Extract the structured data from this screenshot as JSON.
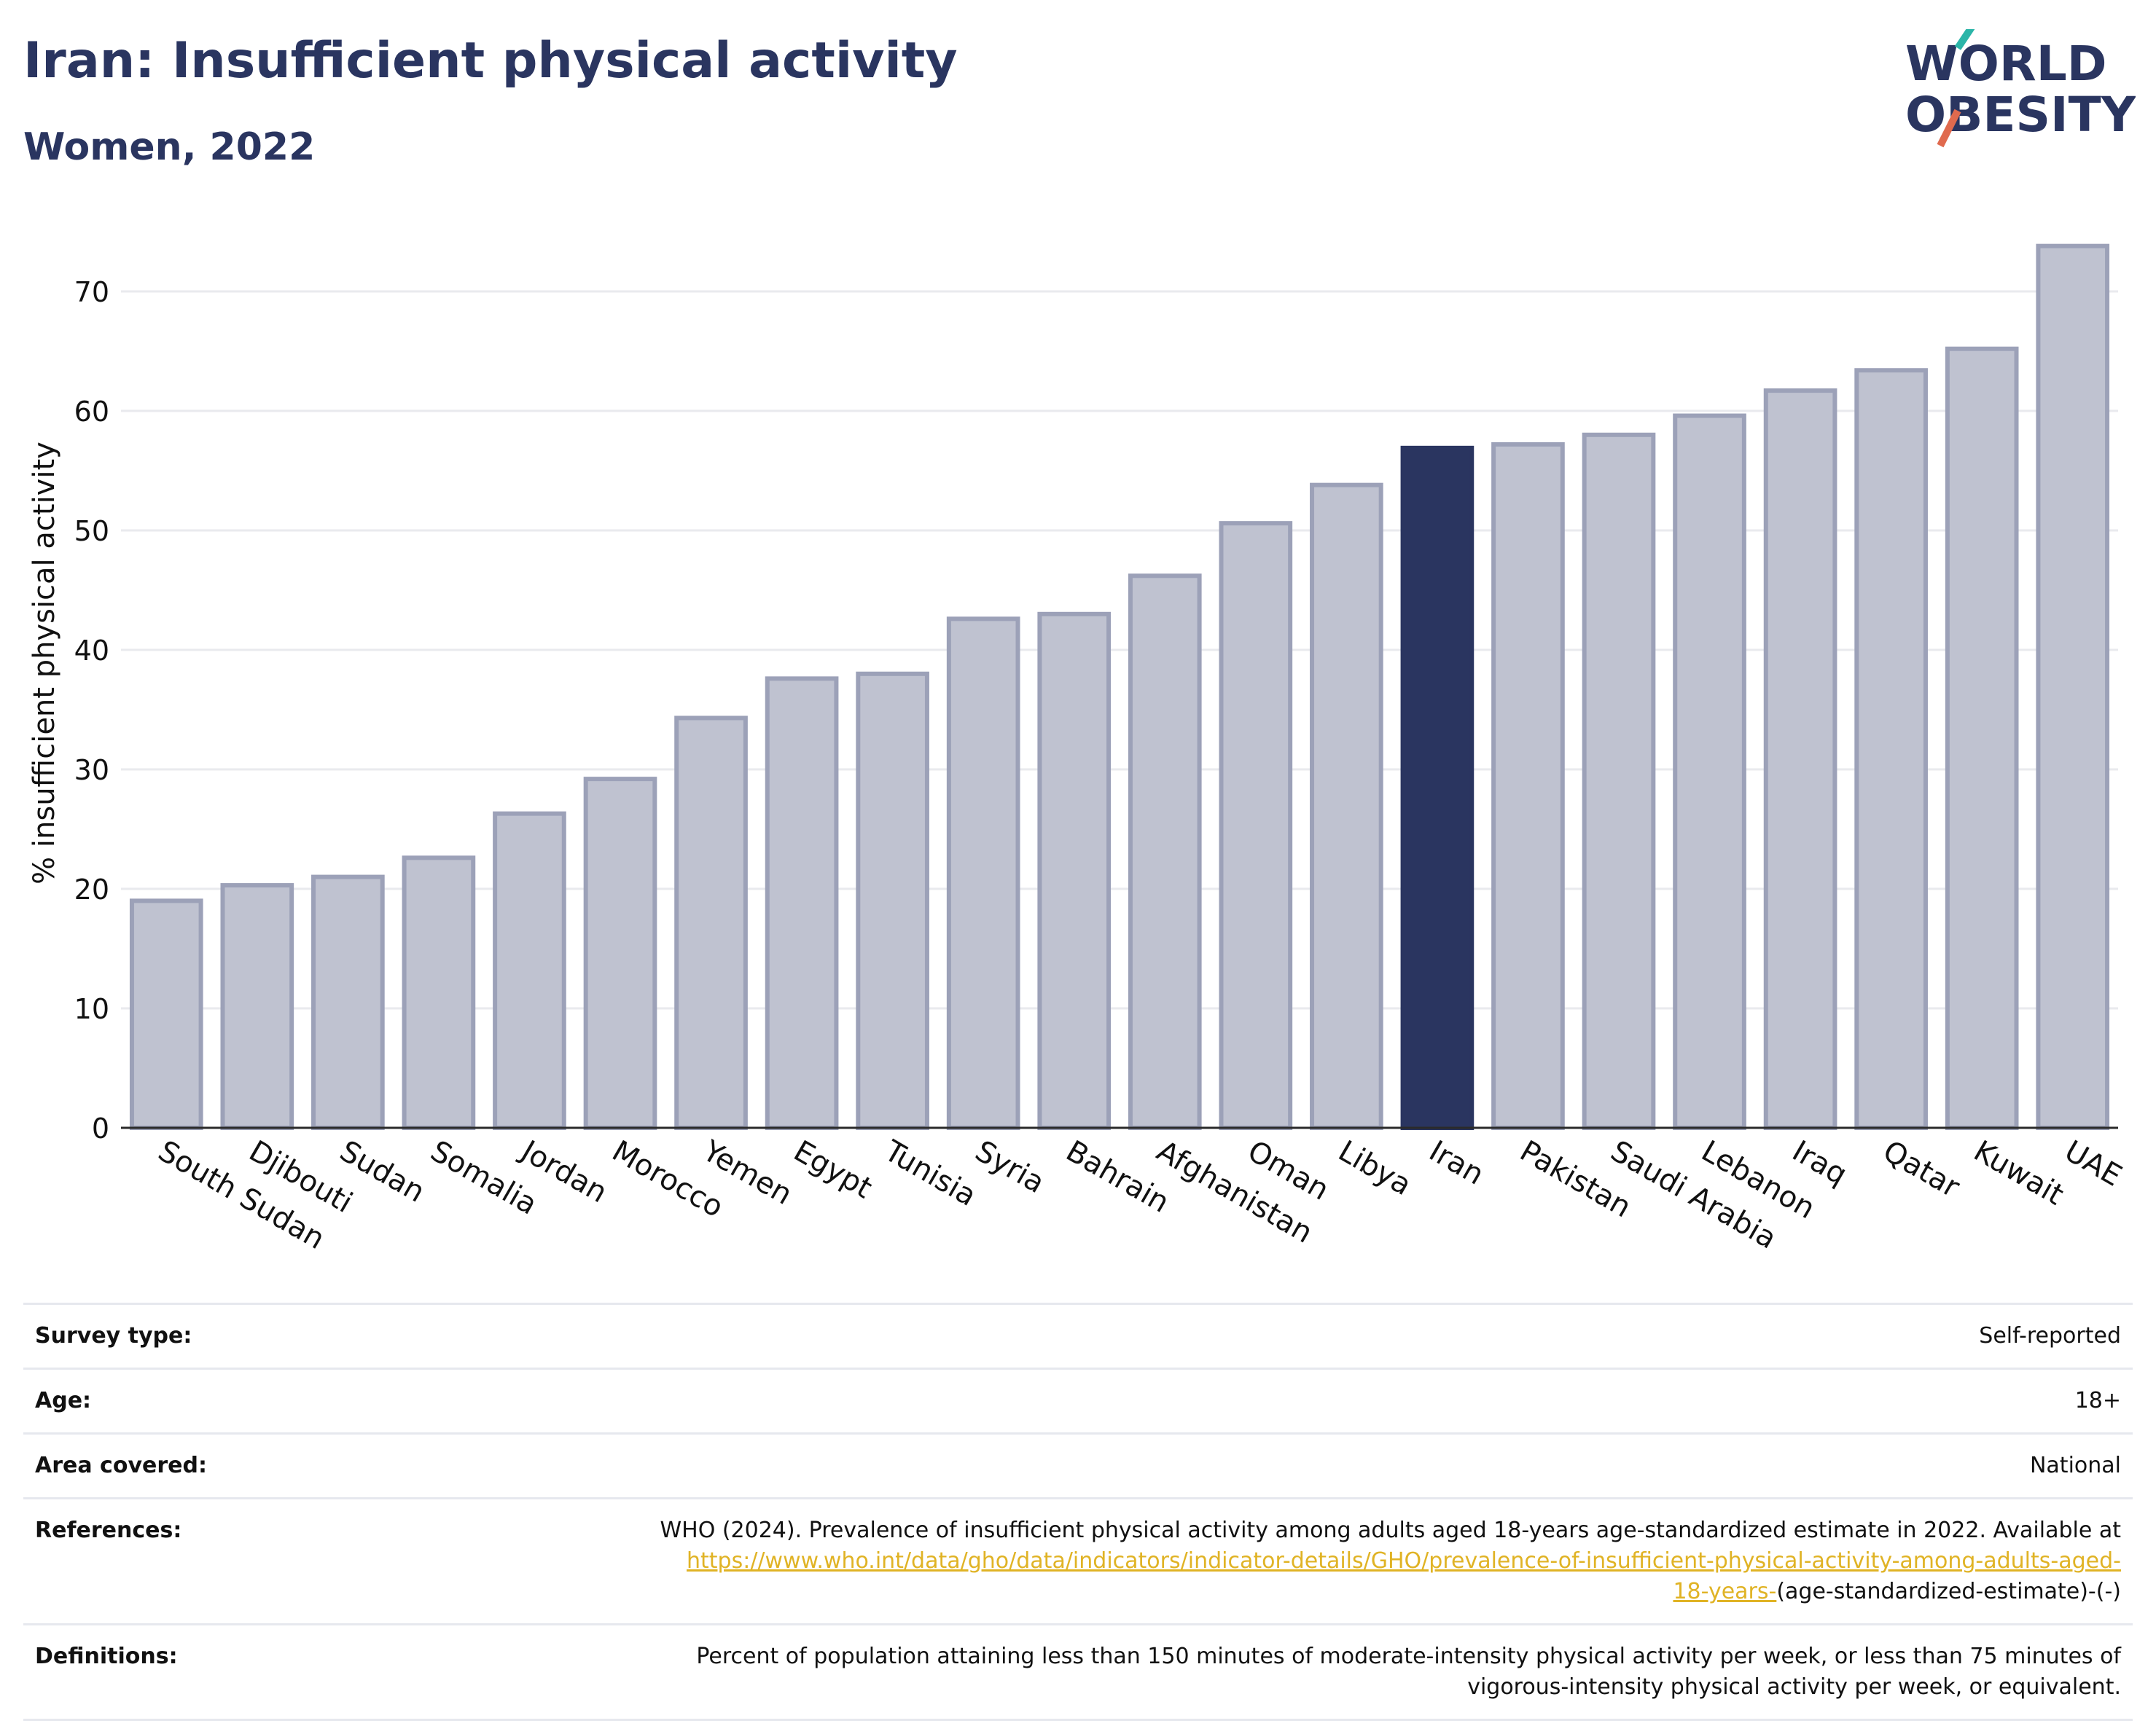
{
  "header": {
    "title": "Iran: Insufficient physical activity",
    "subtitle": "Women, 2022",
    "logo_line1": "WORLD",
    "logo_line2": "OBESITY"
  },
  "colors": {
    "title": "#2a3560",
    "bar_default": "#bfc2d0",
    "bar_default_stroke": "#9ca1b8",
    "bar_highlight": "#2a3560",
    "link": "#e0b325",
    "logo_teal": "#2bb5a8",
    "logo_coral": "#e06a4e"
  },
  "chart_data": {
    "type": "bar",
    "ylabel": "% insufficient physical activity",
    "xlabel": "",
    "ylim": [
      0,
      76
    ],
    "yticks": [
      0,
      10,
      20,
      30,
      40,
      50,
      60,
      70
    ],
    "grid": true,
    "highlight": "Iran",
    "categories": [
      "South Sudan",
      "Djibouti",
      "Sudan",
      "Somalia",
      "Jordan",
      "Morocco",
      "Yemen",
      "Egypt",
      "Tunisia",
      "Syria",
      "Bahrain",
      "Afghanistan",
      "Oman",
      "Libya",
      "Iran",
      "Pakistan",
      "Saudi Arabia",
      "Lebanon",
      "Iraq",
      "Qatar",
      "Kuwait",
      "UAE"
    ],
    "values": [
      19.0,
      20.3,
      21.0,
      22.6,
      26.3,
      29.2,
      34.3,
      37.6,
      38.0,
      42.6,
      43.0,
      46.2,
      50.6,
      53.8,
      56.9,
      57.2,
      58.0,
      59.6,
      61.7,
      63.4,
      65.2,
      73.8
    ]
  },
  "meta": {
    "survey_type_label": "Survey type:",
    "survey_type_value": "Self-reported",
    "age_label": "Age:",
    "age_value": "18+",
    "area_label": "Area covered:",
    "area_value": "National",
    "references_label": "References:",
    "references_text": "WHO (2024). Prevalence of insufficient physical activity among adults aged 18-years age-standardized estimate in 2022. Available at",
    "references_link_a": "https://www.who.int/data/gho/data/indicators/indicator-details/GHO/prevalence-of-insufficient-physical-activity-among-adults-aged-",
    "references_link_b": "18-years-",
    "references_tail": "(age-standardized-estimate)-(-)",
    "definitions_label": "Definitions:",
    "definitions_line1": "Percent of population attaining less than 150 minutes of moderate-intensity physical activity per week, or less than 75 minutes of",
    "definitions_line2": "vigorous-intensity physical activity per week, or equivalent."
  }
}
